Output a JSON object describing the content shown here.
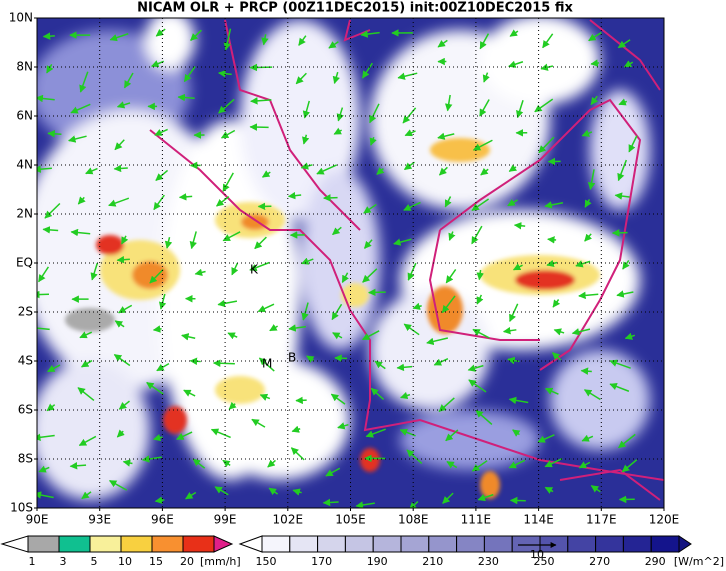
{
  "header": {
    "title": "NICAM OLR + PRCP (00Z11DEC2015) init:00Z10DEC2015 fix"
  },
  "map": {
    "lat_labels": [
      "10N",
      "8N",
      "6N",
      "4N",
      "2N",
      "EQ",
      "2S",
      "4S",
      "6S",
      "8S",
      "10S"
    ],
    "lon_labels": [
      "90E",
      "93E",
      "96E",
      "99E",
      "102E",
      "105E",
      "108E",
      "111E",
      "114E",
      "117E",
      "120E"
    ],
    "place_labels": [
      "K",
      "M",
      "B"
    ]
  },
  "legend": {
    "precip": {
      "labels": [
        "1",
        "3",
        "5",
        "10",
        "15",
        "20"
      ],
      "unit": "[mm/h]"
    },
    "olr": {
      "labels": [
        "150",
        "170",
        "190",
        "210",
        "230",
        "250",
        "270",
        "290"
      ],
      "unit": "[W/m^2]"
    },
    "vector_label": "10"
  }
}
